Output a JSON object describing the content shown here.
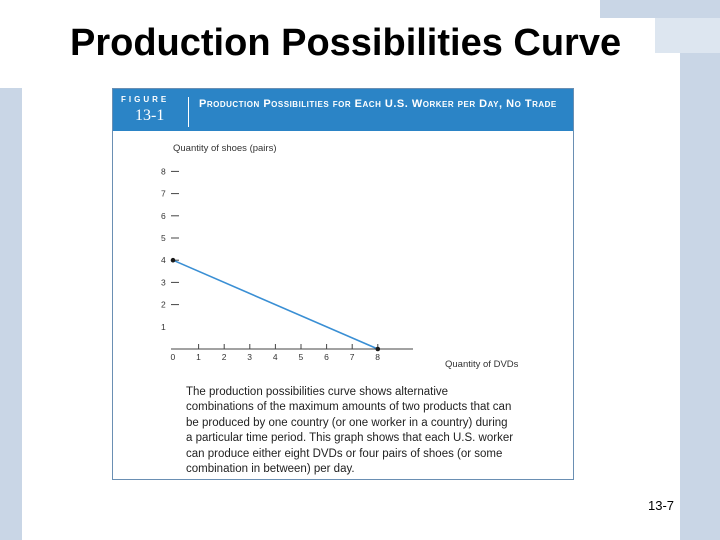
{
  "slide": {
    "title": "Production Possibilities Curve",
    "number": "13-7"
  },
  "figure": {
    "label": "FIGURE",
    "number": "13-1",
    "title": "Production Possibilities for Each U.S. Worker per Day, No Trade",
    "caption": "The production possibilities curve shows alternative combinations of the maximum amounts of two products that can be produced by one country (or one worker in a country) during a particular time period. This graph shows that each U.S. worker can produce either eight DVDs or four pairs of shoes (or some combination in between) per day."
  },
  "colors": {
    "header": "#2b84c6",
    "line": "#3a8fd4",
    "point": "#1a1a1a",
    "axis": "#444444"
  },
  "chart_data": {
    "type": "line",
    "xlabel": "Quantity of DVDs",
    "ylabel": "Quantity of shoes (pairs)",
    "x_ticks": [
      "0",
      "1",
      "2",
      "3",
      "4",
      "5",
      "6",
      "7",
      "8"
    ],
    "y_ticks": [
      "1",
      "2",
      "3",
      "4",
      "5",
      "6",
      "7",
      "8"
    ],
    "xlim": [
      0,
      8
    ],
    "ylim": [
      0,
      8
    ],
    "grid": false,
    "series": [
      {
        "x": [
          0,
          8
        ],
        "y": [
          4,
          0
        ]
      }
    ]
  }
}
